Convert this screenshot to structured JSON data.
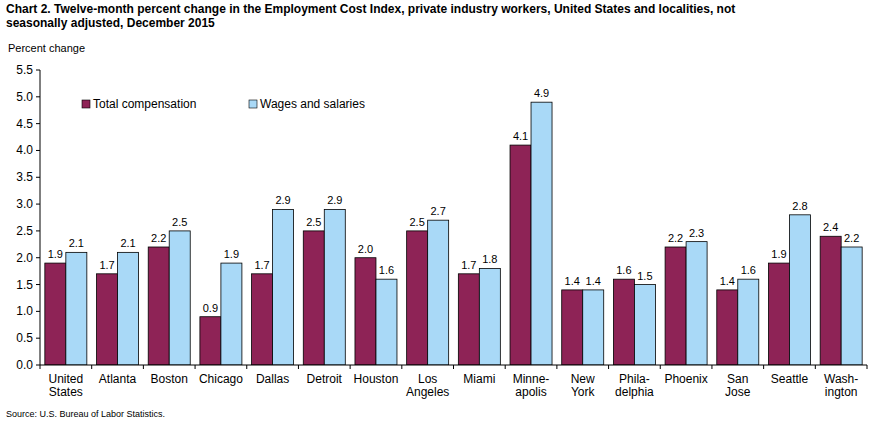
{
  "chart_data": {
    "type": "bar",
    "title": "Chart 2. Twelve-month percent change in the Employment Cost Index, private industry workers, United States and localities, not\nseasonally adjusted, December 2015",
    "y_label": "Percent change",
    "annotations": [
      "Source: U.S. Bureau of Labor Statistics."
    ],
    "categories": [
      "United\nStates",
      "Atlanta",
      "Boston",
      "Chicago",
      "Dallas",
      "Detroit",
      "Houston",
      "Los\nAngeles",
      "Miami",
      "Minne-\napolis",
      "New\nYork",
      "Phila-\ndelphia",
      "Phoenix",
      "San\nJose",
      "Seattle",
      "Wash-\nington"
    ],
    "series": [
      {
        "name": "Total compensation",
        "color": "#8e2356",
        "values": [
          1.9,
          1.7,
          2.2,
          0.9,
          1.7,
          2.5,
          2.0,
          2.5,
          1.7,
          4.1,
          1.4,
          1.6,
          2.2,
          1.4,
          1.9,
          2.4
        ],
        "value_labels": [
          "1.9",
          "1.7",
          "2.2",
          "0.9",
          "1.7",
          "2.5",
          "2.0",
          "2.5",
          "1.7",
          "4.1",
          "1.4",
          "1.6",
          "2.2",
          "1.4",
          "1.9",
          "2.4"
        ]
      },
      {
        "name": "Wages and salaries",
        "color": "#a9d9f7",
        "values": [
          2.1,
          2.1,
          2.5,
          1.9,
          2.9,
          2.9,
          1.6,
          2.7,
          1.8,
          4.9,
          1.4,
          1.5,
          2.3,
          1.6,
          2.8,
          2.2
        ],
        "value_labels": [
          "2.1",
          "2.1",
          "2.5",
          "1.9",
          "2.9",
          "2.9",
          "1.6",
          "2.7",
          "1.8",
          "4.9",
          "1.4",
          "1.5",
          "2.3",
          "1.6",
          "2.8",
          "2.2"
        ]
      }
    ],
    "ylim": [
      0,
      5.5
    ],
    "yticks": [
      {
        "value": 0,
        "label": "0.0"
      },
      0.5,
      {
        "value": 1,
        "label": "1.0"
      },
      1.5,
      {
        "value": 2,
        "label": "2.0"
      },
      2.5,
      {
        "value": 3,
        "label": "3.0"
      },
      3.5,
      {
        "value": 4,
        "label": "4.0"
      },
      4.5,
      {
        "value": 5,
        "label": "5.0"
      },
      5.5
    ],
    "grid": false,
    "legend": "upper left",
    "data_labels": true
  }
}
